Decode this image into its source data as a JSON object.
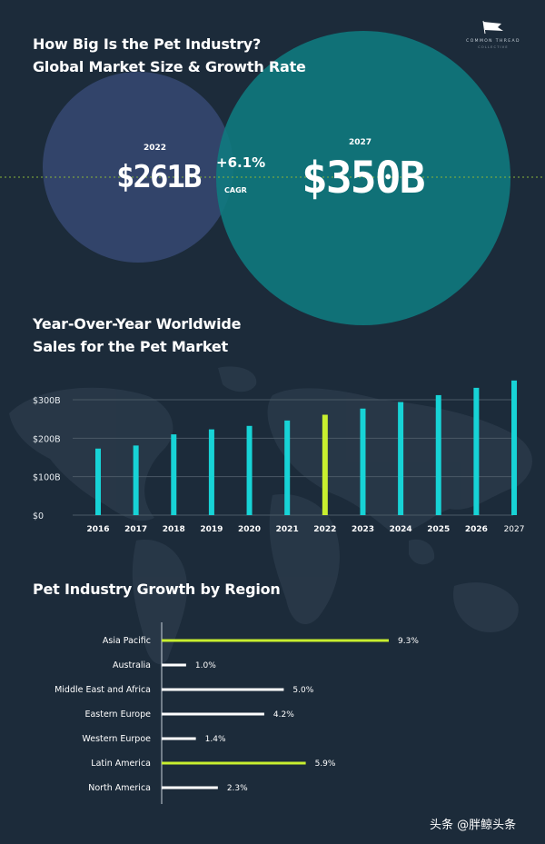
{
  "header": {
    "title_line1": "How Big Is the Pet Industry?",
    "title_line2": "Global Market Size & Growth Rate",
    "brand_name": "COMMON THREAD",
    "brand_sub": "COLLECTIVE"
  },
  "market_size": {
    "year_a": "2022",
    "value_a": "$261B",
    "year_b": "2027",
    "value_b": "$350B",
    "growth": "+6.1%",
    "growth_label": "CAGR"
  },
  "chart_data": [
    {
      "type": "bar",
      "title": "Year-Over-Year Worldwide",
      "subtitle": "Sales for the Pet Market",
      "categories": [
        "2016",
        "2017",
        "2018",
        "2019",
        "2020",
        "2021",
        "2022",
        "2023",
        "2024",
        "2025",
        "2026",
        "2027"
      ],
      "values": [
        173,
        181,
        210,
        223,
        232,
        246,
        261,
        277,
        294,
        312,
        331,
        350
      ],
      "highlight": "2022",
      "ylim": [
        0,
        350
      ],
      "yticks": [
        0,
        100,
        200,
        300
      ],
      "ytick_labels": [
        "$0",
        "$100B",
        "$200B",
        "$300B"
      ],
      "grid": true,
      "colors": {
        "bar": "#17d3d6",
        "highlight": "#c8ef2f"
      }
    },
    {
      "type": "bar",
      "orientation": "horizontal",
      "title": "Pet Industry Growth by Region",
      "categories": [
        "Asia Pacific",
        "Australia",
        "Middle East and Africa",
        "Eastern Europe",
        "Western Eurpoe",
        "Latin America",
        "North America"
      ],
      "values": [
        9.3,
        1.0,
        5.0,
        4.2,
        1.4,
        5.9,
        2.3
      ],
      "labels": [
        "9.3%",
        "1.0%",
        "5.0%",
        "4.2%",
        "1.4%",
        "5.9%",
        "2.3%"
      ],
      "highlight": [
        "Asia Pacific",
        "Latin America"
      ],
      "xlim": [
        0,
        9.3
      ],
      "colors": {
        "bar": "#ffffff",
        "highlight": "#c8ef2f"
      }
    }
  ],
  "watermark": "头条 @胖鲸头条"
}
